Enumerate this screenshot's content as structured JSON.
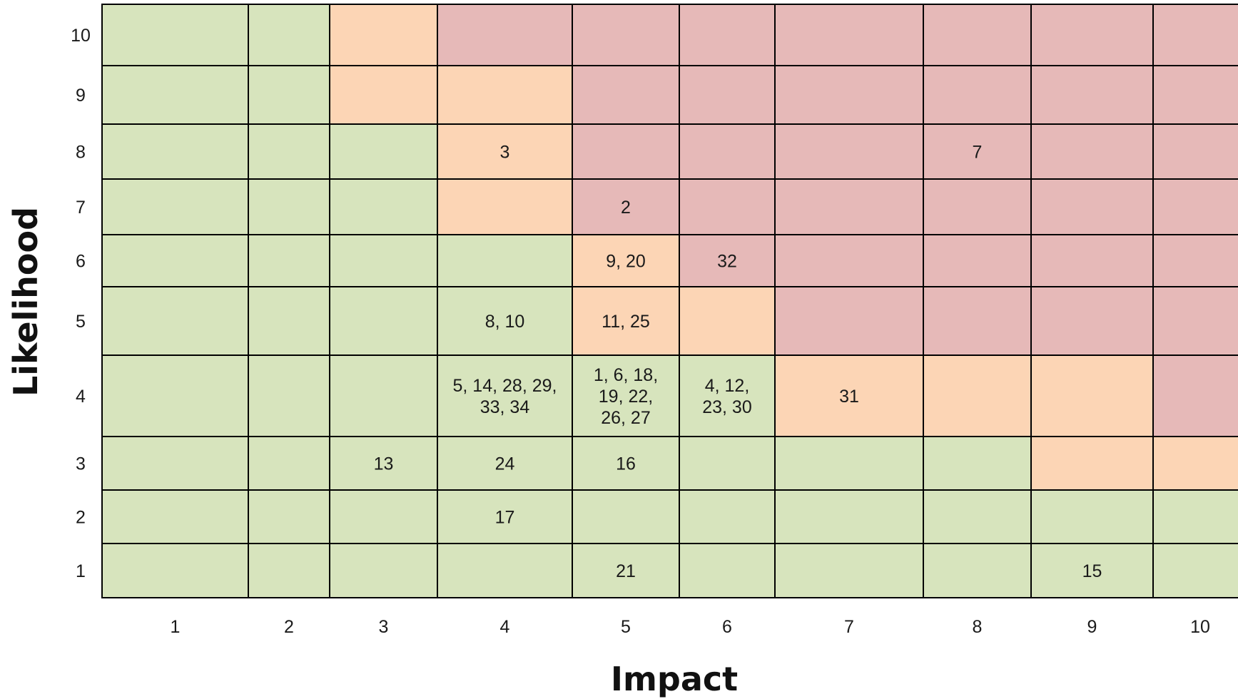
{
  "chart_data": {
    "type": "heatmap",
    "title": "",
    "xlabel": "Impact",
    "ylabel": "Likelihood",
    "x_categories": [
      "1",
      "2",
      "3",
      "4",
      "5",
      "6",
      "7",
      "8",
      "9",
      "10"
    ],
    "y_categories": [
      "10",
      "9",
      "8",
      "7",
      "6",
      "5",
      "4",
      "3",
      "2",
      "1"
    ],
    "colors": {
      "low": "#d7e4bd",
      "medium": "#fcd5b5",
      "high": "#e6b9b8",
      "grid": "#000000"
    },
    "zones": [
      [
        "low",
        "low",
        "medium",
        "high",
        "high",
        "high",
        "high",
        "high",
        "high",
        "high"
      ],
      [
        "low",
        "low",
        "medium",
        "medium",
        "high",
        "high",
        "high",
        "high",
        "high",
        "high"
      ],
      [
        "low",
        "low",
        "low",
        "medium",
        "high",
        "high",
        "high",
        "high",
        "high",
        "high"
      ],
      [
        "low",
        "low",
        "low",
        "medium",
        "high",
        "high",
        "high",
        "high",
        "high",
        "high"
      ],
      [
        "low",
        "low",
        "low",
        "low",
        "medium",
        "high",
        "high",
        "high",
        "high",
        "high"
      ],
      [
        "low",
        "low",
        "low",
        "low",
        "medium",
        "medium",
        "high",
        "high",
        "high",
        "high"
      ],
      [
        "low",
        "low",
        "low",
        "low",
        "low",
        "low",
        "medium",
        "medium",
        "medium",
        "high"
      ],
      [
        "low",
        "low",
        "low",
        "low",
        "low",
        "low",
        "low",
        "low",
        "medium",
        "medium"
      ],
      [
        "low",
        "low",
        "low",
        "low",
        "low",
        "low",
        "low",
        "low",
        "low",
        "low"
      ],
      [
        "low",
        "low",
        "low",
        "low",
        "low",
        "low",
        "low",
        "low",
        "low",
        "low"
      ]
    ],
    "cells": [
      {
        "impact": 4,
        "likelihood": 8,
        "lines": [
          "3"
        ]
      },
      {
        "impact": 8,
        "likelihood": 8,
        "lines": [
          "7"
        ]
      },
      {
        "impact": 5,
        "likelihood": 7,
        "lines": [
          "2"
        ]
      },
      {
        "impact": 5,
        "likelihood": 6,
        "lines": [
          "9, 20"
        ]
      },
      {
        "impact": 6,
        "likelihood": 6,
        "lines": [
          "32"
        ]
      },
      {
        "impact": 4,
        "likelihood": 5,
        "lines": [
          "8, 10"
        ]
      },
      {
        "impact": 5,
        "likelihood": 5,
        "lines": [
          "11, 25"
        ]
      },
      {
        "impact": 4,
        "likelihood": 4,
        "lines": [
          "5, 14, 28, 29,",
          "33, 34"
        ]
      },
      {
        "impact": 5,
        "likelihood": 4,
        "lines": [
          "1, 6, 18,",
          "19, 22,",
          "26, 27"
        ]
      },
      {
        "impact": 6,
        "likelihood": 4,
        "lines": [
          "4, 12,",
          "23, 30"
        ]
      },
      {
        "impact": 7,
        "likelihood": 4,
        "lines": [
          "31"
        ]
      },
      {
        "impact": 3,
        "likelihood": 3,
        "lines": [
          "13"
        ]
      },
      {
        "impact": 4,
        "likelihood": 3,
        "lines": [
          "24"
        ]
      },
      {
        "impact": 5,
        "likelihood": 3,
        "lines": [
          "16"
        ]
      },
      {
        "impact": 4,
        "likelihood": 2,
        "lines": [
          "17"
        ]
      },
      {
        "impact": 5,
        "likelihood": 1,
        "lines": [
          "21"
        ]
      },
      {
        "impact": 9,
        "likelihood": 1,
        "lines": [
          "15"
        ]
      }
    ]
  }
}
